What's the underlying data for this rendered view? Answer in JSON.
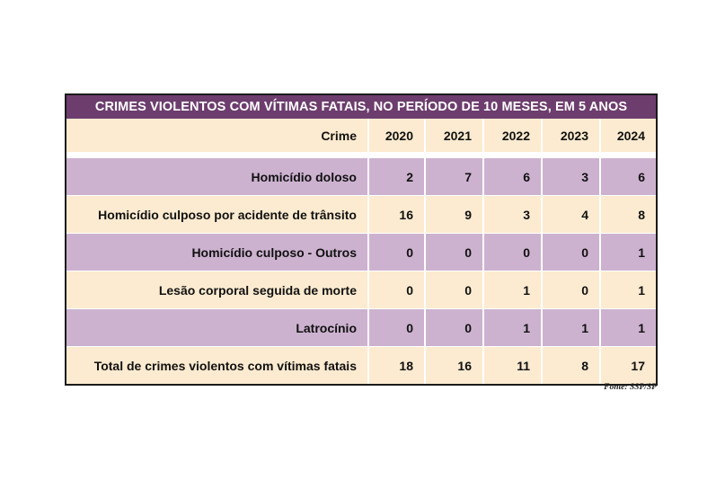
{
  "title": "CRIMES VIOLENTOS COM VÍTIMAS FATAIS, NO PERÍODO DE 10 MESES, EM 5 ANOS",
  "columns": [
    "Crime",
    "2020",
    "2021",
    "2022",
    "2023",
    "2024"
  ],
  "rows": [
    {
      "label": "Homicídio doloso",
      "values": [
        "2",
        "7",
        "6",
        "3",
        "6"
      ]
    },
    {
      "label": "Homicídio culposo por acidente de trânsito",
      "values": [
        "16",
        "9",
        "3",
        "4",
        "8"
      ]
    },
    {
      "label": "Homicídio culposo - Outros",
      "values": [
        "0",
        "0",
        "0",
        "0",
        "1"
      ]
    },
    {
      "label": "Lesão corporal seguida de morte",
      "values": [
        "0",
        "0",
        "1",
        "0",
        "1"
      ]
    },
    {
      "label": "Latrocínio",
      "values": [
        "0",
        "0",
        "1",
        "1",
        "1"
      ]
    },
    {
      "label": "Total de crimes violentos com vítimas fatais",
      "values": [
        "18",
        "16",
        "11",
        "8",
        "17"
      ]
    }
  ],
  "source": "Fonte: SSP/SP",
  "colors": {
    "header_band": "#6d3d6e",
    "lilac_row": "#cdb2d0",
    "cream_row": "#fcebd0"
  }
}
